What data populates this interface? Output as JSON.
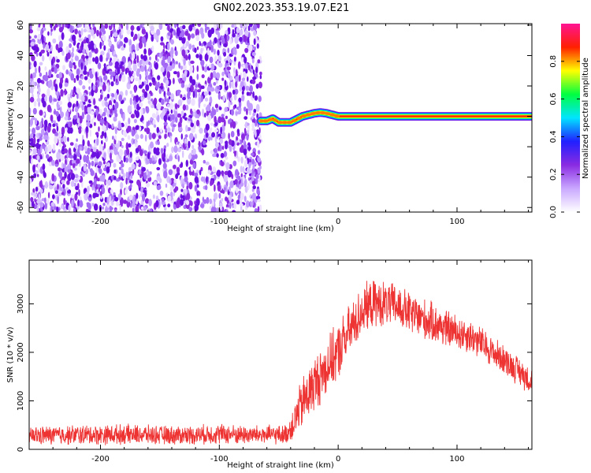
{
  "title": "GN02.2023.353.19.07.E21",
  "chart_data": [
    {
      "type": "heatmap",
      "title": "GN02.2023.353.19.07.E21",
      "xlabel": "Height of straight line (km)",
      "ylabel": "Frequency (Hz)",
      "xlim": [
        -260,
        163
      ],
      "ylim": [
        -63,
        61
      ],
      "x_ticks": [
        -200,
        -100,
        0,
        100
      ],
      "y_ticks": [
        -60,
        -40,
        -20,
        0,
        20,
        40,
        60
      ],
      "noise_region": {
        "x": [
          -260,
          -65
        ],
        "y": [
          -63,
          61
        ]
      },
      "ridge": {
        "x": [
          -65,
          -60,
          -55,
          -50,
          -45,
          -40,
          -35,
          -30,
          -25,
          -20,
          -15,
          -10,
          -5,
          0,
          163
        ],
        "y": [
          -3,
          -3,
          -1.5,
          -4,
          -4,
          -4,
          -2,
          0,
          1,
          2,
          2.5,
          2,
          1,
          0,
          0
        ],
        "peak_amplitude": 0.9
      },
      "colorbar": {
        "label": "Normalized spectral amplitude",
        "range": [
          0,
          1
        ],
        "ticks": [
          0.0,
          0.2,
          0.4,
          0.6,
          0.8
        ],
        "tick_labels": [
          "0.0",
          "0.2",
          "0.4",
          "0.6",
          "0.8"
        ],
        "colors": [
          "#ffffff",
          "#c9a8ff",
          "#8a2be2",
          "#2020ff",
          "#00e5ff",
          "#00ff40",
          "#ffff00",
          "#ff2000",
          "#ff1493"
        ]
      }
    },
    {
      "type": "line",
      "xlabel": "Height of straight line (km)",
      "ylabel": "SNR (10 * v/v)",
      "xlim": [
        -260,
        163
      ],
      "ylim": [
        0,
        3900
      ],
      "x_ticks": [
        -200,
        -100,
        0,
        100
      ],
      "y_ticks": [
        0,
        1000,
        2000,
        3000
      ],
      "series": [
        {
          "color": "#ee3333",
          "x": [
            -260,
            -240,
            -220,
            -200,
            -180,
            -160,
            -140,
            -120,
            -100,
            -80,
            -60,
            -45,
            -40,
            -35,
            -30,
            -25,
            -20,
            -15,
            -10,
            -5,
            0,
            5,
            10,
            15,
            20,
            25,
            30,
            40,
            50,
            60,
            70,
            80,
            90,
            100,
            110,
            120,
            130,
            140,
            150,
            163
          ],
          "y": [
            280,
            290,
            300,
            300,
            310,
            300,
            290,
            300,
            320,
            300,
            300,
            300,
            420,
            700,
            950,
            1150,
            1350,
            1500,
            1700,
            1850,
            2000,
            2250,
            2450,
            2650,
            2850,
            2950,
            3000,
            3000,
            2950,
            2800,
            2700,
            2600,
            2500,
            2400,
            2350,
            2200,
            2000,
            1850,
            1650,
            1400
          ],
          "noise_amplitude": [
            220,
            220,
            230,
            230,
            230,
            220,
            220,
            220,
            240,
            220,
            220,
            220,
            300,
            500,
            600,
            650,
            650,
            650,
            650,
            650,
            650,
            650,
            600,
            600,
            550,
            550,
            550,
            520,
            500,
            500,
            480,
            460,
            440,
            420,
            400,
            380,
            360,
            340,
            330,
            320
          ]
        }
      ]
    }
  ]
}
